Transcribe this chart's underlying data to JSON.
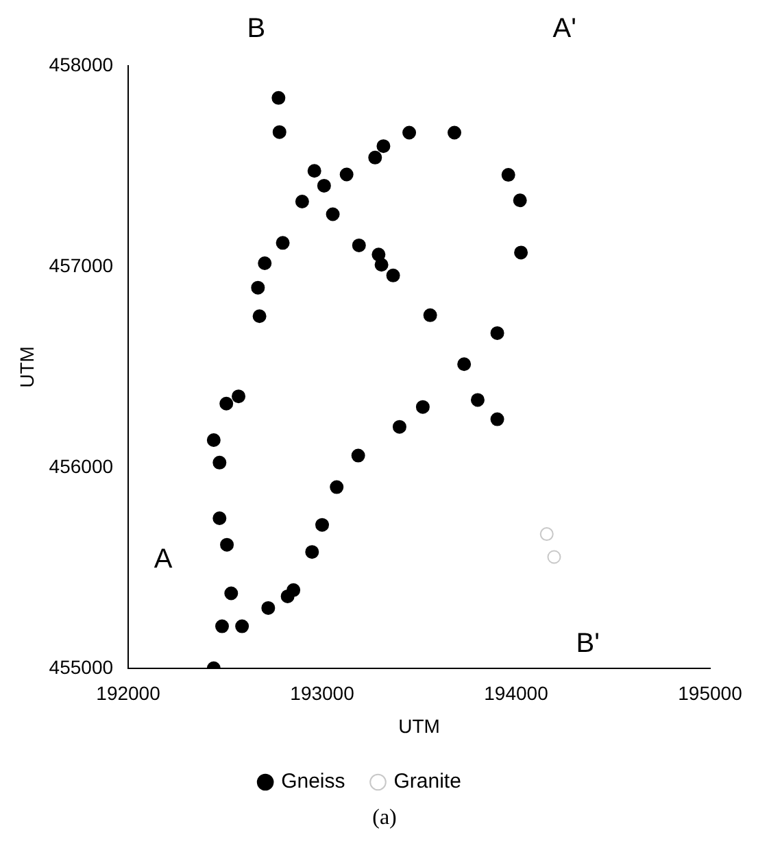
{
  "chart_data": {
    "type": "scatter",
    "xlabel": "UTM",
    "ylabel": "UTM",
    "xlim": [
      192000,
      195000
    ],
    "xticks": [
      192000,
      193000,
      194000,
      195000
    ],
    "ylim": [
      455000,
      458000
    ],
    "yticks": [
      455000,
      456000,
      457000,
      458000
    ],
    "grid": false,
    "legend": "bottom",
    "marker": "circle",
    "series": [
      {
        "name": "Gneiss",
        "color": "#000000",
        "x": [
          192775,
          192780,
          193449,
          193682,
          193316,
          193273,
          192960,
          193126,
          193960,
          193010,
          194020,
          192897,
          193055,
          192797,
          193190,
          194025,
          193291,
          192704,
          193306,
          193366,
          192669,
          192677,
          193557,
          193903,
          193732,
          192506,
          192569,
          193802,
          193519,
          193903,
          193399,
          192441,
          192471,
          193186,
          193075,
          192471,
          193000,
          192509,
          192948,
          192531,
          192852,
          192822,
          192722,
          192484,
          192587,
          192441
        ],
        "values": [
          457840,
          457670,
          457667,
          457667,
          457600,
          457543,
          457477,
          457459,
          457457,
          457403,
          457330,
          457324,
          457261,
          457118,
          457106,
          457070,
          457060,
          457017,
          457009,
          456956,
          456895,
          456753,
          456758,
          456669,
          456514,
          456318,
          456354,
          456336,
          456301,
          456240,
          456202,
          456136,
          456024,
          456059,
          455902,
          455747,
          455714,
          455615,
          455579,
          455373,
          455389,
          455358,
          455300,
          455209,
          455209,
          455000
        ]
      },
      {
        "name": "Granite",
        "color": "#c8c8c8",
        "x": [
          194158,
          194196
        ],
        "values": [
          455668,
          455554
        ]
      }
    ],
    "annotations": [
      "A",
      "B",
      "A'",
      "B'",
      "(a)"
    ]
  }
}
